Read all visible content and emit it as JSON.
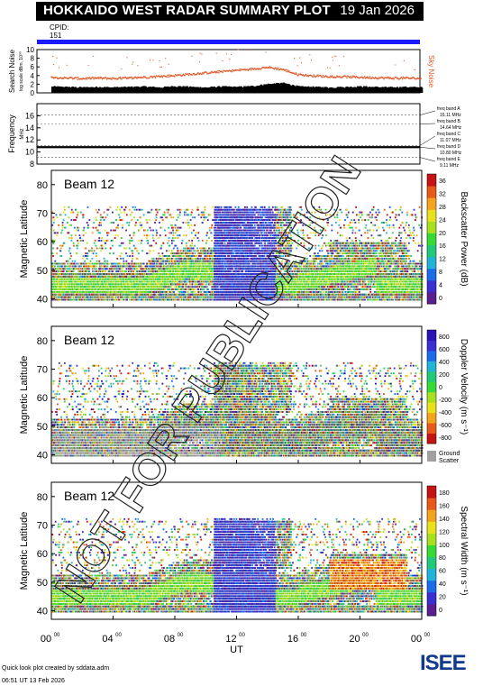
{
  "header": {
    "title": "HOKKAIDO WEST RADAR SUMMARY PLOT",
    "date": "19 Jan 2026",
    "cpid_label": "CPID:",
    "cpid_value": "151"
  },
  "watermark": "NOT FOR PUBLICATION",
  "footer": {
    "credit": "Quick look plot created by sddata.adm",
    "timestamp": "06:51 UT 13 Feb 2026",
    "logo_text": "ISEE"
  },
  "x_axis": {
    "label": "UT",
    "ticks": [
      {
        "hour": 0,
        "label": "00",
        "sup": "00"
      },
      {
        "hour": 4,
        "label": "04",
        "sup": "00"
      },
      {
        "hour": 8,
        "label": "08",
        "sup": "00"
      },
      {
        "hour": 12,
        "label": "12",
        "sup": "00"
      },
      {
        "hour": 16,
        "label": "16",
        "sup": "00"
      },
      {
        "hour": 20,
        "label": "20",
        "sup": "00"
      },
      {
        "hour": 24,
        "label": "00",
        "sup": "00"
      }
    ],
    "range": [
      0,
      24
    ]
  },
  "colors": {
    "cpid_bar": "#1a1aff",
    "noise_search": "#000000",
    "noise_sky": "#e05a2a",
    "ground_scatter": "#a0a0a0"
  },
  "chart_data": [
    {
      "type": "line",
      "id": "noise",
      "ylabel": "Search Noise",
      "ysub": "log scale dBm, 10⁰⁰",
      "right_label": "Sky Noise",
      "ylim": [
        0,
        10
      ],
      "yticks": [
        "0",
        "2",
        "4",
        "6",
        "8",
        "10"
      ],
      "series": [
        {
          "name": "Search Noise",
          "x": [
            0,
            1,
            2,
            3,
            4,
            5,
            6,
            7,
            8,
            9,
            10,
            11,
            12,
            13,
            14,
            15,
            16,
            17,
            18,
            19,
            20,
            21,
            22,
            23,
            24
          ],
          "values": [
            1.2,
            1.1,
            1.0,
            1.1,
            1.0,
            1.1,
            1.2,
            1.0,
            1.3,
            1.1,
            1.0,
            1.2,
            1.1,
            1.3,
            1.8,
            2.0,
            1.2,
            1.1,
            1.0,
            1.1,
            1.2,
            1.1,
            1.0,
            1.1,
            1.0
          ]
        },
        {
          "name": "Sky Noise",
          "x": [
            0,
            1,
            2,
            3,
            4,
            5,
            6,
            7,
            8,
            9,
            10,
            11,
            12,
            13,
            14,
            15,
            16,
            17,
            18,
            19,
            20,
            21,
            22,
            23,
            24
          ],
          "values": [
            3.6,
            3.4,
            3.3,
            3.4,
            3.3,
            3.4,
            3.6,
            3.8,
            4.0,
            4.3,
            4.6,
            4.9,
            5.2,
            5.5,
            5.9,
            5.4,
            4.2,
            3.9,
            3.8,
            3.7,
            3.6,
            3.5,
            3.4,
            3.4,
            3.3
          ]
        }
      ]
    },
    {
      "type": "line",
      "id": "frequency",
      "ylabel": "Frequency",
      "yunit": "MHz",
      "ylim": [
        8,
        18
      ],
      "yticks": [
        "8",
        "10",
        "12",
        "14",
        "16"
      ],
      "bands": [
        {
          "label": "freq band A",
          "value": "16.11 MHz",
          "freq": 16.11
        },
        {
          "label": "freq band B",
          "value": "14.64 MHz",
          "freq": 14.64
        },
        {
          "label": "freq band C",
          "value": "11.07 MHz",
          "freq": 11.07
        },
        {
          "label": "freq band D",
          "value": "10.80 MHz",
          "freq": 10.8
        },
        {
          "label": "freq band E",
          "value": "9.11 MHz",
          "freq": 9.11
        }
      ],
      "operating_freq": 10.8
    },
    {
      "type": "heatmap",
      "id": "power",
      "beam_label": "Beam 12",
      "ylabel": "Magnetic Latitude",
      "ylim": [
        37,
        85
      ],
      "yticks": [
        "40",
        "50",
        "60",
        "70",
        "80"
      ],
      "colorbar_label": "Backscatter Power (dB)",
      "colorbar_ticks": [
        "0",
        "4",
        "8",
        "12",
        "16",
        "20",
        "24",
        "28",
        "32",
        "36"
      ],
      "colorbar_range": [
        0,
        36
      ]
    },
    {
      "type": "heatmap",
      "id": "velocity",
      "beam_label": "Beam 12",
      "ylabel": "Magnetic Latitude",
      "ylim": [
        37,
        85
      ],
      "yticks": [
        "40",
        "50",
        "60",
        "70",
        "80"
      ],
      "colorbar_label": "Doppler Velocity (m s⁻¹)",
      "colorbar_ticks": [
        "-800",
        "-600",
        "-400",
        "-200",
        "0",
        "200",
        "400",
        "600",
        "800"
      ],
      "colorbar_range": [
        -800,
        800
      ],
      "ground_scatter_label": "Ground Scatter"
    },
    {
      "type": "heatmap",
      "id": "width",
      "beam_label": "Beam 12",
      "ylabel": "Magnetic Latitude",
      "ylim": [
        37,
        85
      ],
      "yticks": [
        "40",
        "50",
        "60",
        "70",
        "80"
      ],
      "colorbar_label": "Spectral Width (m s⁻¹)",
      "colorbar_ticks": [
        "0",
        "20",
        "40",
        "60",
        "80",
        "100",
        "120",
        "140",
        "160",
        "180"
      ],
      "colorbar_range": [
        0,
        180
      ]
    }
  ]
}
